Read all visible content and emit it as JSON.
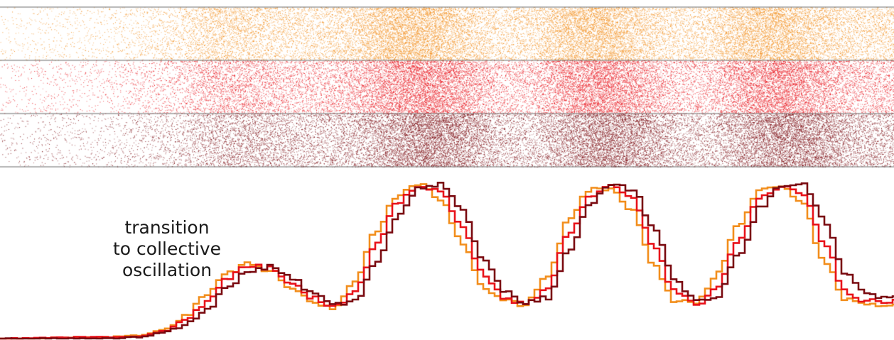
{
  "chart_data": [
    {
      "type": "raster",
      "title": "",
      "xlabel": "",
      "ylabel": "",
      "xlim": [
        0,
        1258
      ],
      "grid": false,
      "legend": "none",
      "description_of_density": "spike density per population band, oscillation onset then four peaks",
      "density_profile": {
        "x": [
          0,
          150,
          250,
          300,
          350,
          400,
          450,
          500,
          550,
          600,
          650,
          700,
          750,
          800,
          850,
          900,
          950,
          1000,
          1050,
          1100,
          1150,
          1200,
          1258
        ],
        "orange": [
          0.05,
          0.08,
          0.2,
          0.45,
          0.4,
          0.3,
          0.3,
          0.45,
          0.85,
          0.9,
          0.55,
          0.3,
          0.35,
          0.75,
          0.85,
          0.5,
          0.3,
          0.35,
          0.75,
          0.85,
          0.5,
          0.35,
          0.35
        ],
        "red": [
          0.05,
          0.08,
          0.2,
          0.4,
          0.42,
          0.32,
          0.3,
          0.42,
          0.75,
          0.95,
          0.65,
          0.32,
          0.32,
          0.7,
          0.9,
          0.6,
          0.32,
          0.32,
          0.7,
          0.9,
          0.6,
          0.35,
          0.35
        ],
        "darkred": [
          0.05,
          0.08,
          0.18,
          0.35,
          0.42,
          0.35,
          0.3,
          0.38,
          0.65,
          0.95,
          0.75,
          0.35,
          0.3,
          0.6,
          0.9,
          0.7,
          0.35,
          0.3,
          0.6,
          0.9,
          0.75,
          0.4,
          0.35
        ]
      },
      "series": [
        {
          "name": "",
          "color": "#f28e1c"
        },
        {
          "name": "",
          "color": "#e8121a"
        },
        {
          "name": "",
          "color": "#7a0a10"
        }
      ]
    },
    {
      "type": "line",
      "title": "",
      "xlabel": "",
      "ylabel": "",
      "xlim": [
        0,
        1258
      ],
      "ylim": [
        0,
        1
      ],
      "grid": false,
      "legend": "none",
      "x": [
        0,
        150,
        200,
        230,
        260,
        290,
        320,
        350,
        380,
        410,
        440,
        470,
        500,
        530,
        560,
        590,
        620,
        650,
        680,
        710,
        740,
        770,
        800,
        830,
        860,
        890,
        920,
        950,
        980,
        1010,
        1040,
        1070,
        1100,
        1130,
        1160,
        1190,
        1220,
        1258
      ],
      "series": [
        {
          "name": "",
          "color": "#f28e1c",
          "values": [
            0.0,
            0.01,
            0.02,
            0.06,
            0.14,
            0.28,
            0.42,
            0.48,
            0.44,
            0.33,
            0.23,
            0.2,
            0.38,
            0.7,
            0.92,
            0.99,
            0.9,
            0.62,
            0.33,
            0.24,
            0.22,
            0.4,
            0.75,
            0.96,
            0.97,
            0.82,
            0.48,
            0.24,
            0.23,
            0.42,
            0.74,
            0.95,
            0.97,
            0.86,
            0.5,
            0.25,
            0.22,
            0.22
          ]
        },
        {
          "name": "",
          "color": "#e8121a",
          "values": [
            0.0,
            0.01,
            0.015,
            0.05,
            0.11,
            0.23,
            0.38,
            0.47,
            0.45,
            0.36,
            0.26,
            0.2,
            0.3,
            0.6,
            0.87,
            0.99,
            0.95,
            0.72,
            0.42,
            0.26,
            0.22,
            0.32,
            0.66,
            0.92,
            0.98,
            0.9,
            0.6,
            0.3,
            0.22,
            0.33,
            0.64,
            0.9,
            0.98,
            0.94,
            0.62,
            0.3,
            0.24,
            0.24
          ]
        },
        {
          "name": "",
          "color": "#7a0a10",
          "values": [
            0.0,
            0.0,
            0.01,
            0.04,
            0.08,
            0.18,
            0.32,
            0.44,
            0.46,
            0.39,
            0.29,
            0.22,
            0.24,
            0.48,
            0.79,
            0.96,
            0.99,
            0.83,
            0.52,
            0.3,
            0.23,
            0.26,
            0.55,
            0.86,
            1.0,
            0.96,
            0.72,
            0.38,
            0.24,
            0.27,
            0.54,
            0.84,
            0.99,
            0.99,
            0.76,
            0.42,
            0.28,
            0.26
          ]
        }
      ]
    }
  ],
  "annotation": {
    "lines": [
      "transition",
      "to collective",
      "oscillation"
    ]
  }
}
